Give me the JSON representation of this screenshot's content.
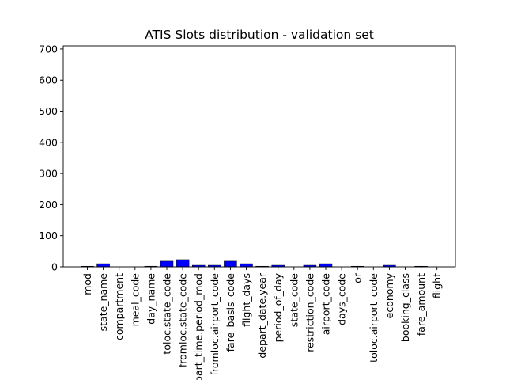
{
  "chart_data": {
    "type": "bar",
    "title": "ATIS Slots distribution - validation set",
    "xlabel": "",
    "ylabel": "",
    "ylim": [
      0,
      710
    ],
    "yticks": [
      0,
      100,
      200,
      300,
      400,
      500,
      600,
      700
    ],
    "grid": false,
    "bar_color": "#0000ff",
    "categories": [
      "mod",
      "state_name",
      "compartment",
      "meal_code",
      "day_name",
      "toloc.state_code",
      "fromloc.state_code",
      "depart_time.period_mod",
      "fromloc.airport_code",
      "fare_basis_code",
      "flight_days",
      "depart_date.year",
      "period_of_day",
      "state_code",
      "restriction_code",
      "airport_code",
      "days_code",
      "or",
      "toloc.airport_code",
      "economy",
      "booking_class",
      "fare_amount",
      "flight"
    ],
    "values": [
      2,
      10,
      0,
      0,
      2,
      18,
      23,
      5,
      5,
      18,
      10,
      2,
      5,
      0,
      5,
      10,
      0,
      2,
      0,
      5,
      0,
      2,
      0
    ]
  }
}
